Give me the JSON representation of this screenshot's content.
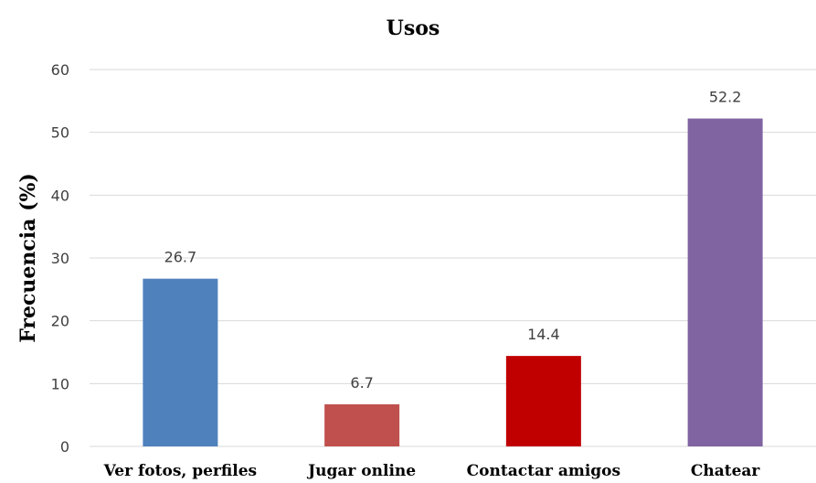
{
  "chart_data": {
    "type": "bar",
    "title": "Usos",
    "xlabel": "",
    "ylabel": "Frecuencia (%)",
    "categories": [
      "Ver fotos, perfiles",
      "Jugar online",
      "Contactar amigos",
      "Chatear"
    ],
    "values": [
      26.7,
      6.7,
      14.4,
      52.2
    ],
    "value_labels": [
      "26.7",
      "6.7",
      "14.4",
      "52.2"
    ],
    "colors": [
      "#4f81bd",
      "#c0504d",
      "#c00000",
      "#8064a2"
    ],
    "ylim": [
      0,
      60
    ],
    "yticks": [
      0,
      10,
      20,
      30,
      40,
      50,
      60
    ],
    "grid": true,
    "legend": "none"
  }
}
